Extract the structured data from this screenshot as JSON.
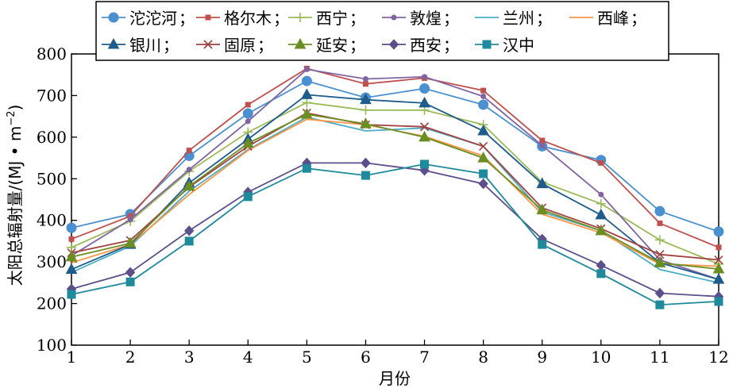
{
  "chart_data": {
    "type": "line",
    "title": "",
    "xlabel": "月份",
    "ylabel": "太阳总辐射量/(MJ·m⁻²)",
    "ylabel_main": "太阳总辐射量/",
    "ylabel_unit": "(MJ • m",
    "ylabel_sup": "−2",
    "ylabel_close": ")",
    "x": [
      1,
      2,
      3,
      4,
      5,
      6,
      7,
      8,
      9,
      10,
      11,
      12
    ],
    "xlim": [
      1,
      12
    ],
    "ylim": [
      100,
      800
    ],
    "yticks": [
      100,
      200,
      300,
      400,
      500,
      600,
      700,
      800
    ],
    "grid": false,
    "legend_position": "top",
    "series": [
      {
        "name": "沱沱河",
        "color": "#4a90d0",
        "marker": "circle",
        "values": [
          382,
          415,
          555,
          657,
          735,
          695,
          717,
          678,
          578,
          545,
          422,
          373
        ]
      },
      {
        "name": "格尔木",
        "color": "#c0504d",
        "marker": "smallsq",
        "values": [
          355,
          410,
          568,
          678,
          765,
          728,
          742,
          712,
          592,
          538,
          393,
          335
        ]
      },
      {
        "name": "西宁",
        "color": "#9bbb59",
        "marker": "plus",
        "values": [
          335,
          398,
          518,
          612,
          683,
          665,
          665,
          630,
          492,
          440,
          353,
          295
        ]
      },
      {
        "name": "敦煌",
        "color": "#8064a2",
        "marker": "smalldot",
        "values": [
          315,
          402,
          522,
          638,
          763,
          740,
          745,
          698,
          580,
          462,
          305,
          258
        ]
      },
      {
        "name": "兰州",
        "color": "#4bacc6",
        "marker": "none",
        "values": [
          275,
          338,
          470,
          570,
          648,
          615,
          622,
          578,
          420,
          375,
          282,
          250
        ]
      },
      {
        "name": "西峰",
        "color": "#f79646",
        "marker": "none",
        "values": [
          298,
          342,
          462,
          568,
          643,
          630,
          602,
          555,
          415,
          370,
          295,
          290
        ]
      },
      {
        "name": "银川",
        "color": "#1f5c8b",
        "marker": "triangle",
        "values": [
          282,
          342,
          490,
          595,
          702,
          690,
          682,
          615,
          488,
          413,
          298,
          258
        ]
      },
      {
        "name": "固原",
        "color": "#a0413f",
        "marker": "x",
        "values": [
          322,
          352,
          480,
          578,
          658,
          630,
          625,
          578,
          430,
          380,
          318,
          305
        ]
      },
      {
        "name": "延安",
        "color": "#6b8e23",
        "marker": "triangle",
        "values": [
          312,
          345,
          482,
          585,
          655,
          632,
          600,
          550,
          425,
          375,
          298,
          283
        ]
      },
      {
        "name": "西安",
        "color": "#5d4e8c",
        "marker": "diamond",
        "values": [
          235,
          275,
          375,
          468,
          538,
          538,
          520,
          488,
          355,
          292,
          225,
          217
        ]
      },
      {
        "name": "汉中",
        "color": "#1f8a9c",
        "marker": "square",
        "values": [
          222,
          252,
          350,
          457,
          525,
          508,
          535,
          512,
          342,
          272,
          197,
          205
        ]
      }
    ]
  }
}
